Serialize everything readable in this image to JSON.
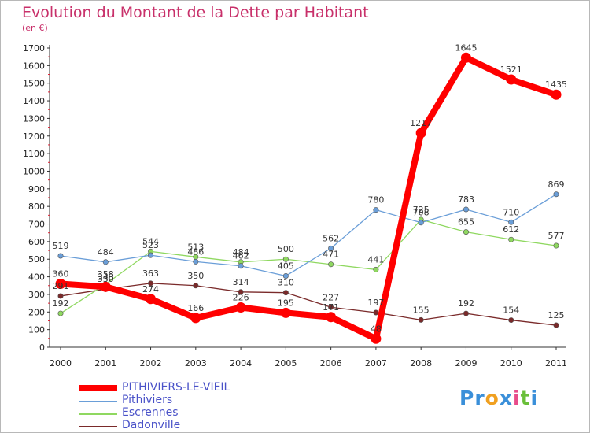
{
  "title": "Evolution du Montant de la Dette par Habitant",
  "subtitle": "(en €)",
  "logo": {
    "parts": [
      "Pr",
      "o",
      "x",
      "i",
      "t",
      "i"
    ],
    "colors": [
      "#3a8fd9",
      "#f0a020",
      "#3a8fd9",
      "#e84c8a",
      "#6abf3a",
      "#3a8fd9"
    ]
  },
  "chart_data": {
    "type": "line",
    "title": "Evolution du Montant de la Dette par Habitant",
    "ylabel": "(en €)",
    "xlabel": "",
    "categories": [
      "2000",
      "2001",
      "2002",
      "2003",
      "2004",
      "2005",
      "2006",
      "2007",
      "2008",
      "2009",
      "2010",
      "2011"
    ],
    "ylim": [
      0,
      1700
    ],
    "yticks": [
      "0",
      "100",
      "200",
      "300",
      "400",
      "500",
      "600",
      "700",
      "800",
      "900",
      "1000",
      "1100",
      "1200",
      "1300",
      "1400",
      "1500",
      "1600",
      "1700"
    ],
    "grid": false,
    "series": [
      {
        "name": "PITHIVIERS-LE-VIEIL",
        "color": "#ff0000",
        "values": [
          360,
          343,
          274,
          166,
          226,
          195,
          171,
          48,
          1217,
          1645,
          1521,
          1435
        ],
        "labels": [
          "360",
          "343",
          "274",
          "166",
          "226",
          "195",
          "171",
          "48",
          "1217",
          "1645",
          "1521",
          "1435"
        ]
      },
      {
        "name": "Pithiviers",
        "color": "#6a9ed8",
        "values": [
          519,
          484,
          523,
          486,
          462,
          405,
          562,
          780,
          708,
          783,
          710,
          869
        ],
        "labels": [
          "519",
          "484",
          "523",
          "486",
          "462",
          "405",
          "562",
          "780",
          "708",
          "783",
          "710",
          "869"
        ]
      },
      {
        "name": "Escrennes",
        "color": "#8fd860",
        "values": [
          192,
          358,
          544,
          513,
          484,
          500,
          471,
          441,
          725,
          655,
          612,
          577
        ],
        "labels": [
          "192",
          "358",
          "544",
          "513",
          "484",
          "500",
          "471",
          "441",
          "725",
          "655",
          "612",
          "577"
        ]
      },
      {
        "name": "Dadonville",
        "color": "#7a2a2a",
        "values": [
          291,
          330,
          363,
          350,
          314,
          310,
          227,
          197,
          155,
          192,
          154,
          125
        ],
        "labels": [
          "291",
          "330",
          "363",
          "350",
          "314",
          "310",
          "227",
          "197",
          "155",
          "192",
          "154",
          "125"
        ]
      }
    ],
    "legend": "bottom-left"
  }
}
